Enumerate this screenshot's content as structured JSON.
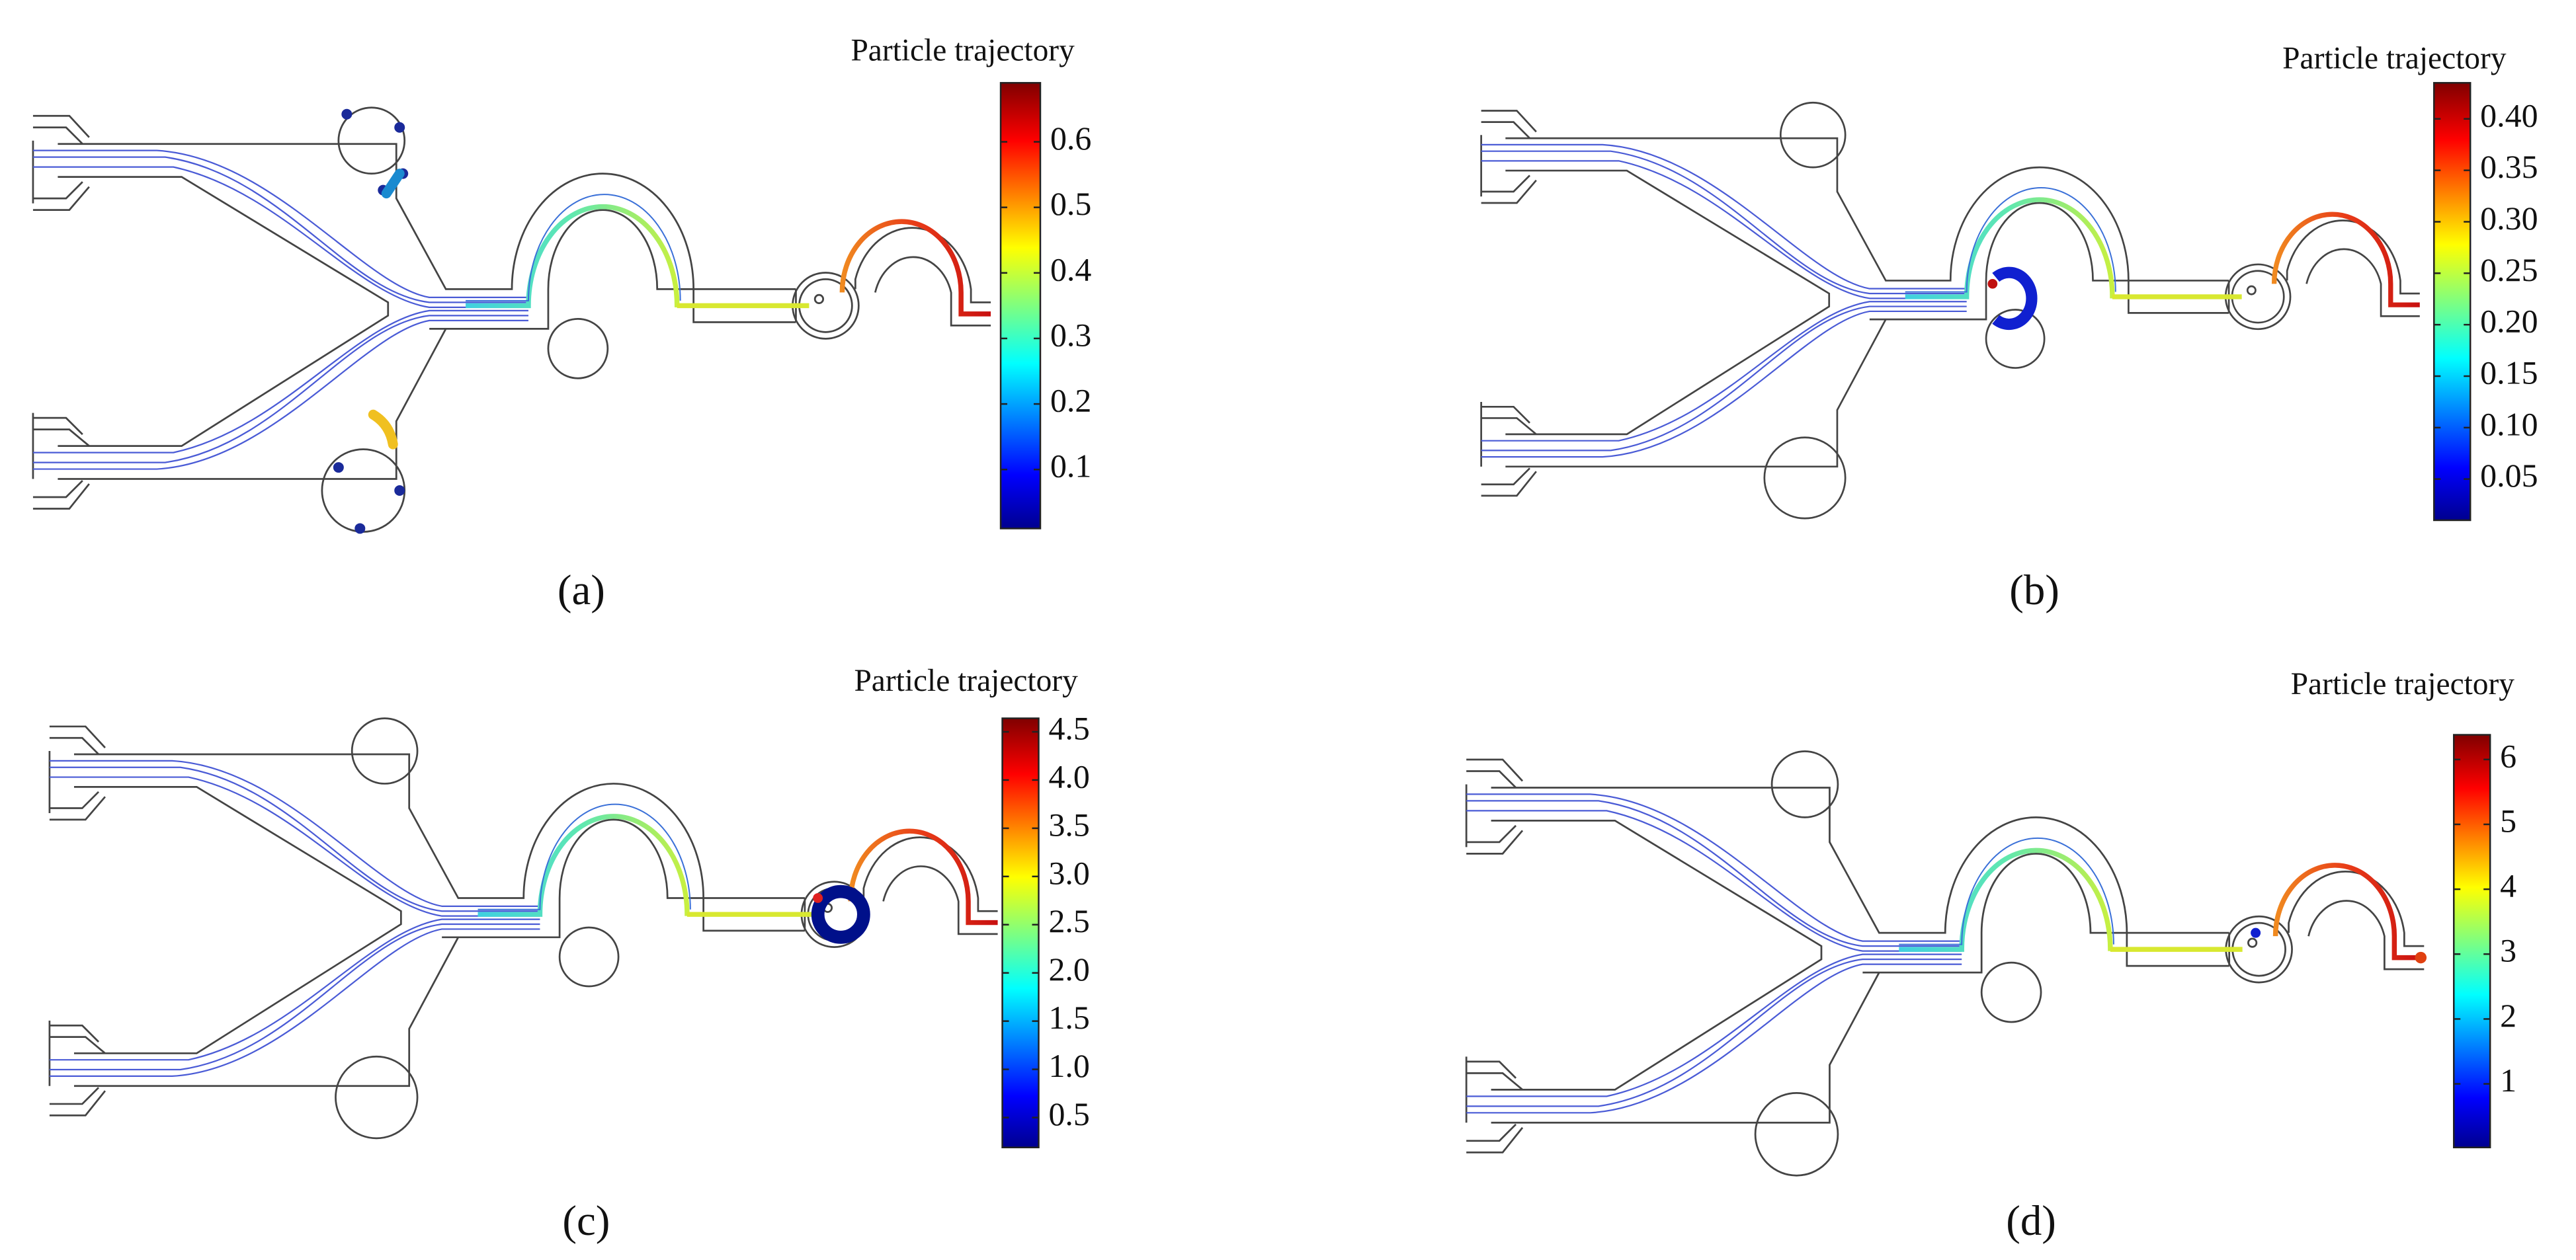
{
  "panels": [
    {
      "title": "Particle trajectory",
      "label": "(a)",
      "colorbar": {
        "lim": [
          0.01,
          0.69
        ],
        "ticks": [
          0.1,
          0.2,
          0.3,
          0.4,
          0.5,
          0.6
        ]
      }
    },
    {
      "title": "Particle trajectory",
      "label": "(b)",
      "colorbar": {
        "lim": [
          0.01,
          0.435
        ],
        "ticks": [
          0.05,
          {
            "value": 0.1,
            "label": "0.10"
          },
          0.15,
          {
            "value": 0.2,
            "label": "0.20"
          },
          0.25,
          {
            "value": 0.3,
            "label": "0.30"
          },
          0.35,
          {
            "value": 0.4,
            "label": "0.40"
          }
        ]
      }
    },
    {
      "title": "Particle trajectory",
      "label": "(c)",
      "colorbar": {
        "lim": [
          0.19,
          4.64
        ],
        "ticks": [
          0.5,
          {
            "value": 1,
            "label": "1.0"
          },
          1.5,
          {
            "value": 2,
            "label": "2.0"
          },
          2.5,
          {
            "value": 3,
            "label": "3.0"
          },
          3.5,
          {
            "value": 4,
            "label": "4.0"
          },
          4.5
        ]
      }
    },
    {
      "title": "Particle trajectory",
      "label": "(d)",
      "colorbar": {
        "lim": [
          0.02,
          6.38
        ],
        "ticks": [
          1,
          2,
          3,
          4,
          5,
          6
        ]
      }
    }
  ]
}
